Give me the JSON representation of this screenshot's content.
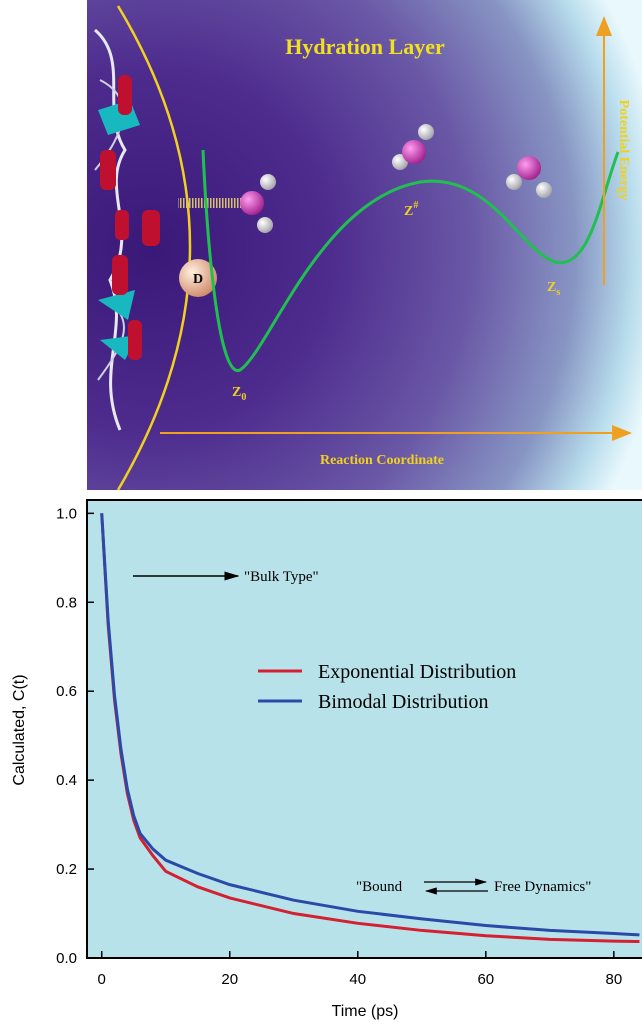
{
  "diagram": {
    "title": "Hydration Layer",
    "y_arrow_label": "Potential Energy",
    "x_arrow_label": "Reaction Coordinate",
    "donor": "D",
    "states": [
      {
        "main": "Z",
        "sub": "0"
      },
      {
        "main": "Z",
        "sup": "#"
      },
      {
        "main": "Z",
        "sub": "s"
      }
    ]
  },
  "chart_data": {
    "type": "line",
    "x_label": "Time (ps)",
    "y_label": "Calculated, C(t)",
    "xlim": [
      -2.3,
      84.4
    ],
    "ylim": [
      0,
      1.03
    ],
    "xticks": [
      0,
      20,
      40,
      60,
      80
    ],
    "yticks": [
      {
        "value": 0,
        "label": "0.0"
      },
      0.2,
      0.4,
      0.6,
      0.8,
      {
        "value": 1,
        "label": "1.0"
      }
    ],
    "annotations": [
      "\"Bulk Type\"",
      "\"Bound",
      "Free Dynamics\""
    ],
    "series": [
      {
        "name": "Exponential Distribution",
        "color": "#d42030",
        "x": [
          0,
          1,
          2,
          3,
          4,
          5,
          6,
          8,
          10,
          15,
          20,
          30,
          40,
          50,
          60,
          70,
          80,
          84
        ],
        "values": [
          1.0,
          0.75,
          0.58,
          0.46,
          0.37,
          0.31,
          0.27,
          0.23,
          0.195,
          0.16,
          0.135,
          0.1,
          0.078,
          0.062,
          0.05,
          0.042,
          0.038,
          0.037
        ]
      },
      {
        "name": "Bimodal Distribution",
        "color": "#2a4aa8",
        "x": [
          0,
          1,
          2,
          3,
          4,
          5,
          6,
          8,
          10,
          15,
          20,
          30,
          40,
          50,
          60,
          70,
          80,
          84
        ],
        "values": [
          1.0,
          0.76,
          0.59,
          0.47,
          0.38,
          0.32,
          0.28,
          0.245,
          0.22,
          0.19,
          0.165,
          0.13,
          0.105,
          0.088,
          0.073,
          0.062,
          0.055,
          0.052
        ]
      }
    ]
  }
}
